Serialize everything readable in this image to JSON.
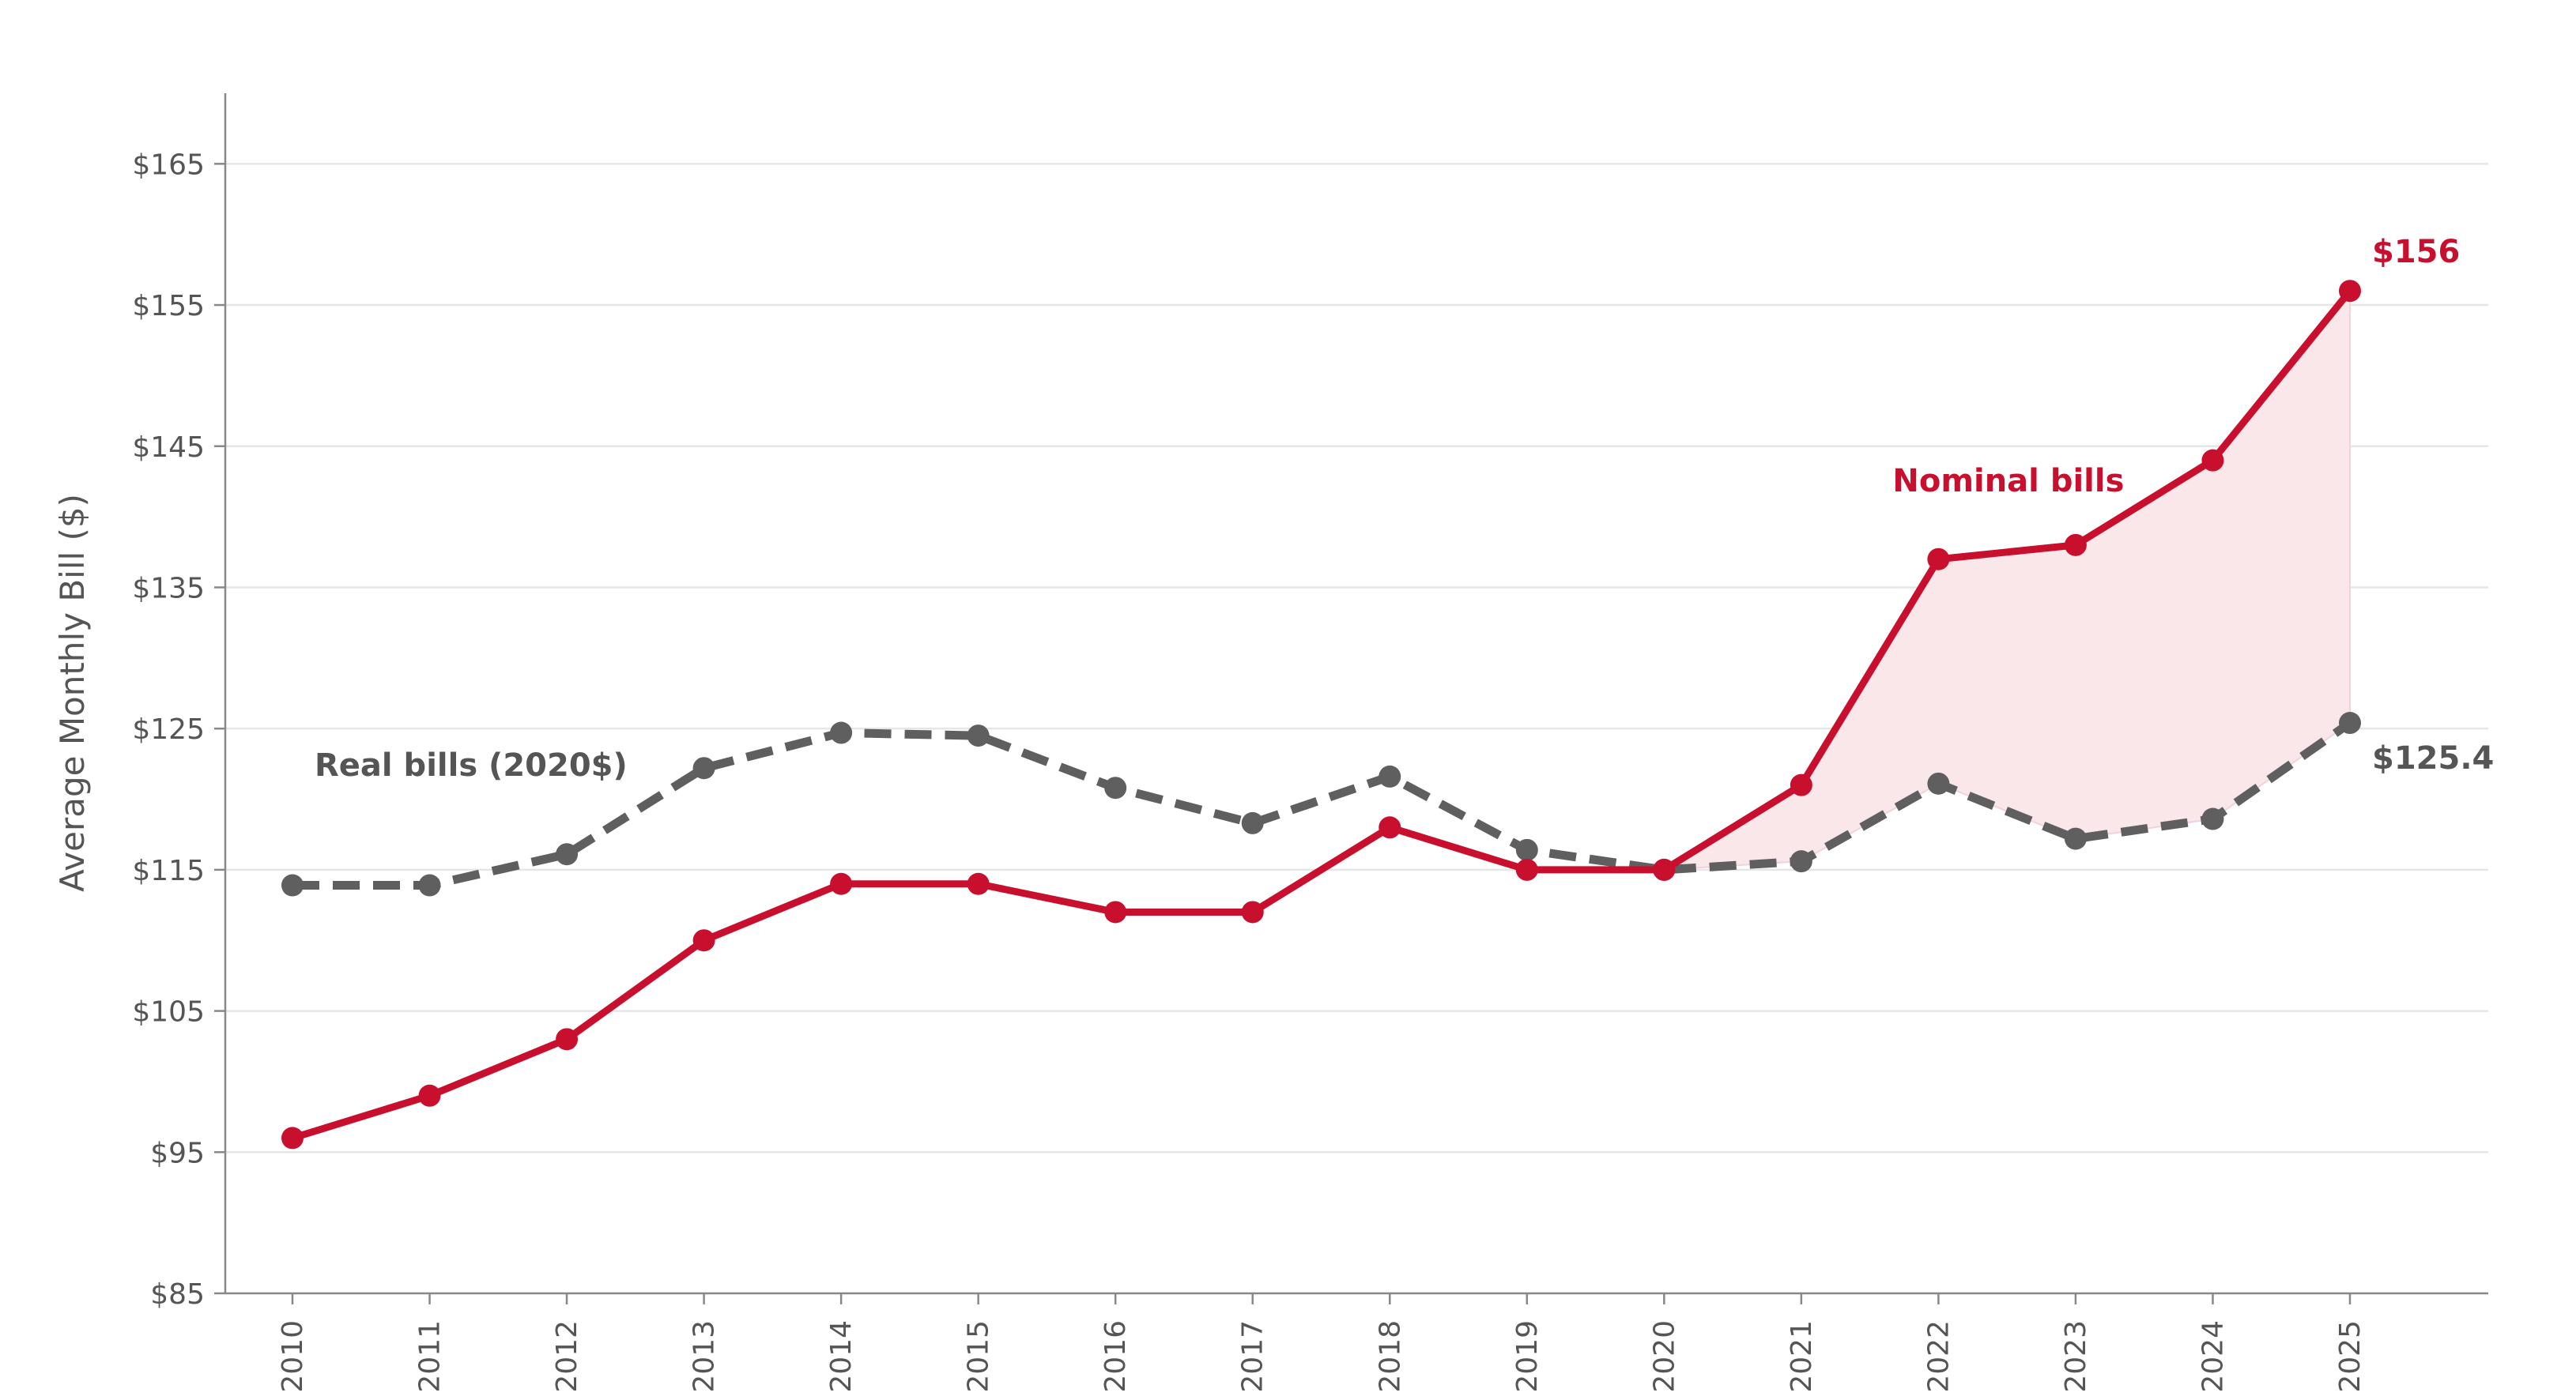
{
  "chart_data": {
    "type": "line",
    "title": "",
    "xlabel": "",
    "ylabel": "Average Monthly Bill ($)",
    "x": [
      "2010",
      "2011",
      "2012",
      "2013",
      "2014",
      "2015",
      "2016",
      "2017",
      "2018",
      "2019",
      "2020",
      "2021",
      "2022",
      "2023",
      "2024",
      "2025"
    ],
    "ylim": [
      85,
      170
    ],
    "yticks": [
      85,
      95,
      105,
      115,
      125,
      135,
      145,
      155,
      165
    ],
    "ytick_labels": [
      "$85",
      "$95",
      "$105",
      "$115",
      "$125",
      "$135",
      "$145",
      "$155",
      "$165"
    ],
    "grid": "horizontal",
    "legend": "none",
    "series": [
      {
        "name": "Nominal bills",
        "style": "solid",
        "color": "#c8102e",
        "values": [
          96,
          99,
          103,
          110,
          114,
          114,
          112,
          112,
          118,
          115,
          115,
          121,
          137,
          138,
          144,
          156
        ]
      },
      {
        "name": "Real bills (2020$)",
        "style": "dashed",
        "color": "#5f5f5f",
        "values": [
          113.9,
          113.9,
          116.1,
          122.2,
          124.7,
          124.5,
          120.8,
          118.3,
          121.6,
          116.4,
          115.0,
          115.6,
          121.1,
          117.2,
          118.6,
          125.4
        ]
      }
    ],
    "shaded_gap": {
      "between": [
        "Nominal bills",
        "Real bills (2020$)"
      ],
      "from": "2020",
      "to": "2025",
      "color": "#f9e7ea"
    },
    "annotations": [
      {
        "text": "$156",
        "series": "Nominal bills",
        "color": "#c8102e"
      },
      {
        "text": "$125.4",
        "series": "Real bills (2020$)",
        "color": "#555555"
      },
      {
        "text": "Nominal bills",
        "series": "Nominal bills",
        "color": "#c8102e"
      },
      {
        "text": "Real bills (2020$)",
        "series": "Real bills (2020$)",
        "color": "#555555"
      }
    ]
  }
}
